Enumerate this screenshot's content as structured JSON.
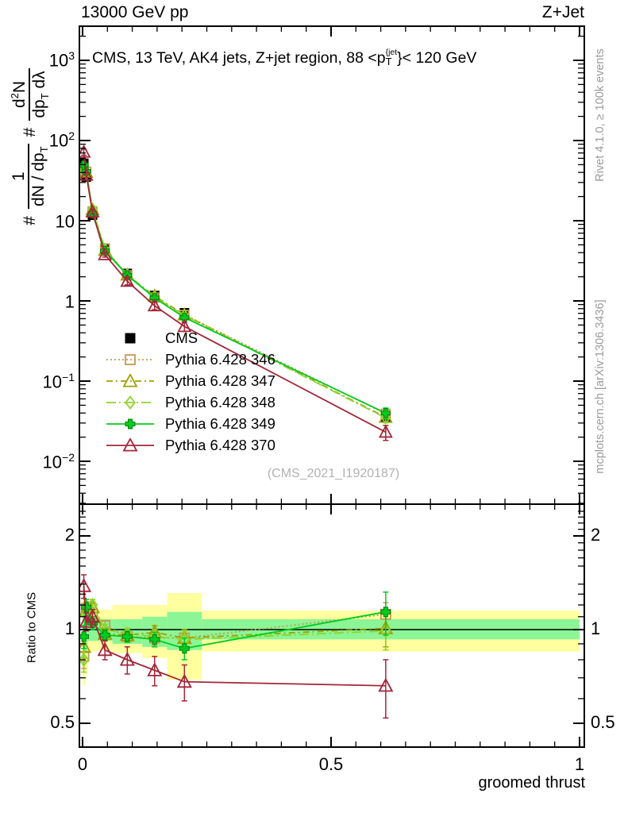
{
  "header": {
    "left": "13000 GeV pp",
    "right": "Z+Jet"
  },
  "panel_title": {
    "prefix": "CMS, 13 TeV, AK4 jets, Z+jet region, 88 <p",
    "sup": "{jet",
    "sub": "T",
    "suffix": "}< 120 GeV"
  },
  "watermark": "(CMS_2021_I1920187)",
  "right_margin": {
    "top": "Rivet 4.1.0, ≥ 100k events",
    "bottom": "mcplots.cern.ch [arXiv:1306.3436]"
  },
  "ylabel_main": {
    "hash1": "#",
    "frac1_num": "1",
    "frac1_den": "dN / dp",
    "frac1_den_sub": "T",
    "hash2": "#",
    "frac2_num_pre": "d",
    "frac2_num_sup": "2",
    "frac2_num_post": "N",
    "frac2_den": "dp",
    "frac2_den_sub": "T",
    "frac2_den_tail": " dλ"
  },
  "ylabel_ratio": "Ratio to CMS",
  "xlabel": "groomed thrust",
  "axes": {
    "main_y": [
      {
        "base": "10",
        "exp": "3"
      },
      {
        "base": "10",
        "exp": "2"
      },
      {
        "base": "10",
        "exp": ""
      },
      {
        "base": "1",
        "exp": ""
      },
      {
        "base": "10",
        "exp": "−1"
      },
      {
        "base": "10",
        "exp": "−2"
      }
    ],
    "ratio_y": [
      "2",
      "1",
      "0.5"
    ],
    "x": [
      "0",
      "0.5",
      "1"
    ]
  },
  "chart_data": {
    "type": "line",
    "title": "CMS, 13 TeV, AK4 jets, Z+jet region, 88 < pT^{jet} < 120 GeV",
    "xlabel": "groomed thrust",
    "ylabel": "# 1/(dN/dpT) # d²N/(dpT dλ)",
    "ylabel_ratio": "Ratio to CMS",
    "x_scale": "linear",
    "y_scale": "log",
    "x_range": [
      0,
      1
    ],
    "y_range_main": [
      0.0032,
      3160
    ],
    "y_range_ratio": [
      0.42,
      2.55
    ],
    "grid": false,
    "legend_position": "middle-left",
    "bin_edges": [
      0,
      0.005,
      0.01,
      0.03,
      0.06,
      0.12,
      0.17,
      0.24,
      1.0
    ],
    "x": [
      0.0025,
      0.0075,
      0.02,
      0.045,
      0.09,
      0.145,
      0.205,
      0.61
    ],
    "reference_line": 1,
    "series": [
      {
        "name": "CMS",
        "color": "#000000",
        "marker": "square",
        "filled": true,
        "line": "none",
        "values": [
          52,
          35,
          11.7,
          4.4,
          2.2,
          1.17,
          0.71,
          0.035
        ],
        "ratio": [
          1,
          1,
          1,
          1,
          1,
          1,
          1,
          1
        ],
        "ratio_err": [
          0.02,
          0.02,
          0.02,
          0.02,
          0.03,
          0.04,
          0.05,
          0.1
        ]
      },
      {
        "name": "Pythia 6.428 346",
        "color": "#c49a52",
        "marker": "square",
        "filled": false,
        "line": "dotted",
        "values": [
          42.6,
          40.9,
          13.1,
          4.53,
          2.09,
          1.1,
          0.67,
          0.0392
        ],
        "ratio": [
          0.82,
          1.17,
          1.12,
          1.03,
          0.95,
          0.94,
          0.94,
          1.12
        ],
        "ratio_err": [
          0.07,
          0.06,
          0.05,
          0.04,
          0.04,
          0.05,
          0.06,
          0.1
        ]
      },
      {
        "name": "Pythia 6.428 347",
        "color": "#a0a000",
        "marker": "triangle",
        "filled": false,
        "line": "dashdot",
        "values": [
          45.8,
          40.2,
          13.8,
          4.27,
          2.11,
          1.15,
          0.67,
          0.0354
        ],
        "ratio": [
          0.88,
          1.15,
          1.18,
          0.97,
          0.96,
          0.98,
          0.94,
          1.01
        ],
        "ratio_err": [
          0.07,
          0.06,
          0.05,
          0.04,
          0.04,
          0.05,
          0.06,
          0.13
        ]
      },
      {
        "name": "Pythia 6.428 348",
        "color": "#8ed42c",
        "marker": "diamond",
        "filled": false,
        "line": "dashdot2",
        "values": [
          41.6,
          39.2,
          14.0,
          4.4,
          2.13,
          1.11,
          0.66,
          0.0347
        ],
        "ratio": [
          0.8,
          1.12,
          1.2,
          1.0,
          0.97,
          0.95,
          0.93,
          0.99
        ],
        "ratio_err": [
          0.07,
          0.06,
          0.05,
          0.04,
          0.04,
          0.05,
          0.06,
          0.13
        ]
      },
      {
        "name": "Pythia 6.428 349",
        "color": "#00cc1e",
        "marker": "plus",
        "filled": true,
        "line": "solid",
        "values": [
          49.4,
          41.3,
          12.3,
          4.22,
          2.09,
          1.09,
          0.62,
          0.0399
        ],
        "ratio": [
          0.95,
          1.18,
          1.05,
          0.96,
          0.95,
          0.93,
          0.87,
          1.14
        ],
        "ratio_err": [
          0.08,
          0.07,
          0.05,
          0.04,
          0.04,
          0.05,
          0.07,
          0.18
        ]
      },
      {
        "name": "Pythia 6.428 370",
        "color": "#a32638",
        "marker": "triangle",
        "filled": false,
        "line": "solid",
        "values": [
          71.8,
          37.1,
          12.9,
          3.78,
          1.76,
          0.87,
          0.48,
          0.0231
        ],
        "ratio": [
          1.38,
          1.06,
          1.1,
          0.86,
          0.8,
          0.74,
          0.68,
          0.66
        ],
        "ratio_err": [
          0.12,
          0.07,
          0.06,
          0.06,
          0.08,
          0.08,
          0.09,
          0.14
        ]
      }
    ],
    "ratio_bands": {
      "outer_color": "#ffffa0",
      "inner_color": "#8cf596",
      "bins": [
        {
          "x0": 0,
          "x1": 0.005,
          "outer": [
            0.66,
            1.3
          ],
          "inner": [
            0.78,
            1.18
          ]
        },
        {
          "x0": 0.005,
          "x1": 0.01,
          "outer": [
            0.72,
            1.25
          ],
          "inner": [
            0.85,
            1.13
          ]
        },
        {
          "x0": 0.01,
          "x1": 0.03,
          "outer": [
            0.85,
            1.18
          ],
          "inner": [
            0.92,
            1.09
          ]
        },
        {
          "x0": 0.03,
          "x1": 0.06,
          "outer": [
            0.86,
            1.16
          ],
          "inner": [
            0.92,
            1.08
          ]
        },
        {
          "x0": 0.06,
          "x1": 0.12,
          "outer": [
            0.84,
            1.2
          ],
          "inner": [
            0.9,
            1.08
          ]
        },
        {
          "x0": 0.12,
          "x1": 0.17,
          "outer": [
            0.81,
            1.2
          ],
          "inner": [
            0.88,
            1.1
          ]
        },
        {
          "x0": 0.17,
          "x1": 0.24,
          "outer": [
            0.69,
            1.31
          ],
          "inner": [
            0.86,
            1.14
          ]
        },
        {
          "x0": 0.24,
          "x1": 1.0,
          "outer": [
            0.85,
            1.15
          ],
          "inner": [
            0.93,
            1.08
          ]
        }
      ]
    }
  }
}
